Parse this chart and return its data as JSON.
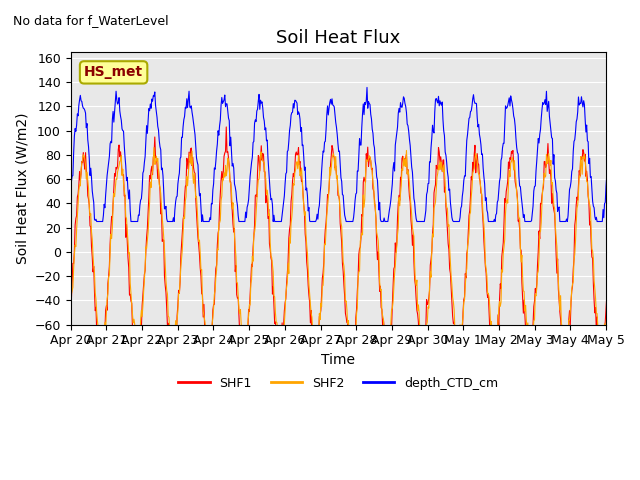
{
  "title": "Soil Heat Flux",
  "suptitle": "No data for f_WaterLevel",
  "ylabel": "Soil Heat Flux (W/m2)",
  "xlabel": "Time",
  "ylim": [
    -60,
    165
  ],
  "yticks": [
    -60,
    -40,
    -20,
    0,
    20,
    40,
    60,
    80,
    100,
    120,
    140,
    160
  ],
  "annotation_box": "HS_met",
  "annotation_color": "#8B0000",
  "annotation_bg": "#FFFF99",
  "bg_color": "#E8E8E8",
  "line_SHF1_color": "red",
  "line_SHF2_color": "orange",
  "line_depth_color": "blue",
  "legend_labels": [
    "SHF1",
    "SHF2",
    "depth_CTD_cm"
  ],
  "xtick_positions": [
    0,
    1,
    2,
    3,
    4,
    5,
    6,
    7,
    8,
    9,
    10,
    11,
    12,
    13,
    14,
    15
  ],
  "xtick_labels": [
    "Apr 20",
    "Apr 21",
    "Apr 22",
    "Apr 23",
    "Apr 24",
    "Apr 25",
    "Apr 26",
    "Apr 27",
    "Apr 28",
    "Apr 29",
    "Apr 30",
    "May 1",
    "May 2",
    "May 3",
    "May 4",
    "May 5"
  ],
  "xlim": [
    0,
    15
  ]
}
